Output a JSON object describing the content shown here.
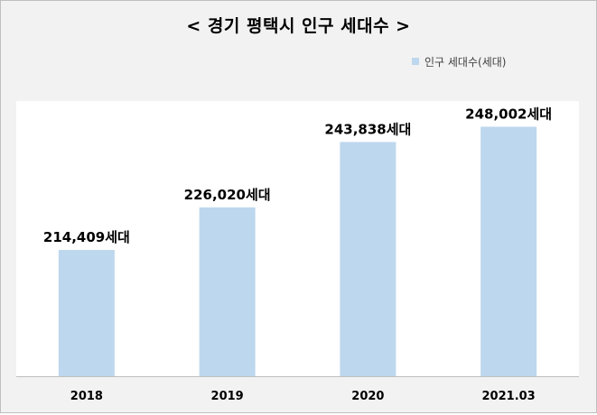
{
  "title": "< 경기 평택시 인구 세대수 >",
  "legend": {
    "label": "인구 세대수(세대)"
  },
  "colors": {
    "bar": "#bdd7ee",
    "background": "#f2f2f2",
    "plot": "#ffffff",
    "axis": "#bfbfbf"
  },
  "chart_data": {
    "type": "bar",
    "title": "< 경기 평택시 인구 세대수 >",
    "categories": [
      "2018",
      "2019",
      "2020",
      "2021.03"
    ],
    "series": [
      {
        "name": "인구 세대수(세대)",
        "values": [
          214409,
          226020,
          243838,
          248002
        ]
      }
    ],
    "data_labels": [
      "214,409세대",
      "226,020세대",
      "243,838세대",
      "248,002세대"
    ],
    "ylim": [
      180000,
      255000
    ],
    "grid": false,
    "legend_position": "top-right"
  }
}
